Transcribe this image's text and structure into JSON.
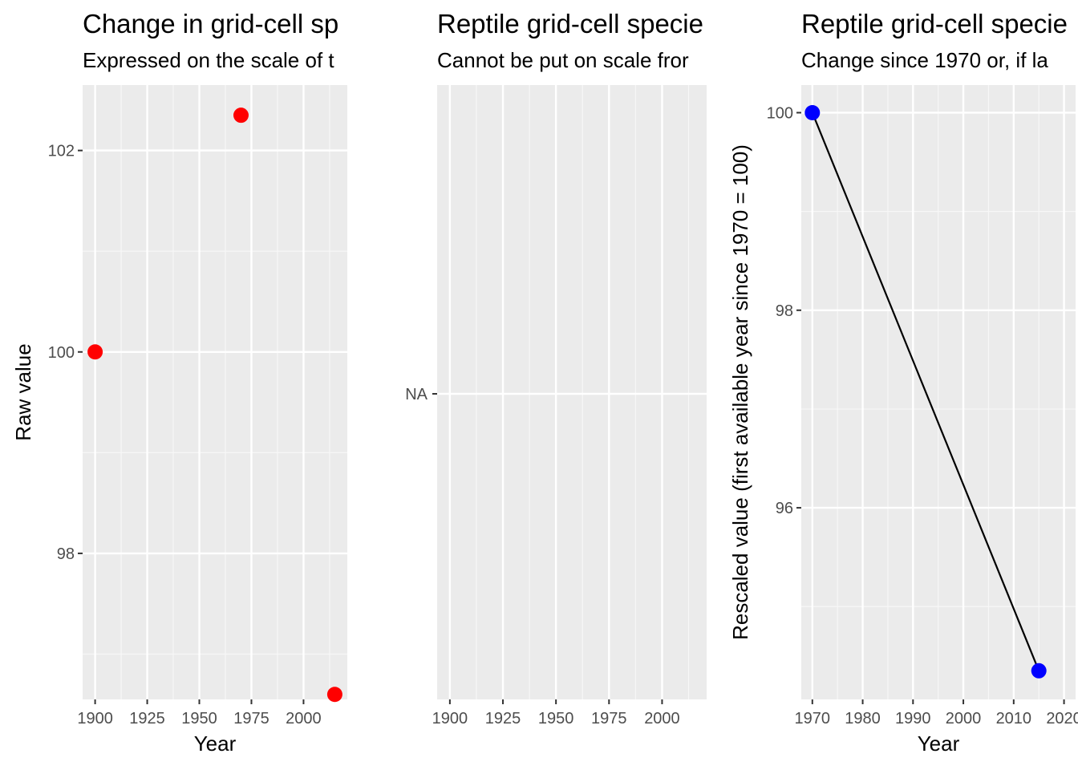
{
  "colors": {
    "panel_background": "#ebebeb",
    "grid_major": "#ffffff",
    "grid_minor": "#f7f7f7",
    "tick": "#333333",
    "tick_label": "#4d4d4d",
    "point_raw": "#ff0000",
    "point_rescaled": "#0000ff",
    "line": "#000000"
  },
  "chart_data": [
    {
      "type": "scatter",
      "title": "Change in grid-cell sp",
      "subtitle": "Expressed on the scale of t",
      "xlabel": "Year",
      "ylabel": "Raw value",
      "xlim": [
        1894,
        2021
      ],
      "ylim": [
        96.55,
        102.65
      ],
      "x_ticks": [
        1900,
        1925,
        1950,
        1975,
        2000
      ],
      "y_ticks": [
        98,
        100,
        102
      ],
      "x": [
        1900,
        1970,
        2015
      ],
      "y": [
        100,
        102.35,
        96.6
      ],
      "point_color": "#ff0000",
      "line": false,
      "grid": true,
      "legend": "none"
    },
    {
      "type": "scatter",
      "title": "Reptile grid-cell specie",
      "subtitle": "Cannot be put on scale fror",
      "xlabel": "",
      "ylabel": "",
      "xlim": [
        1894,
        2021
      ],
      "x_ticks": [
        1900,
        1925,
        1950,
        1975,
        2000
      ],
      "y_ticks_text": [
        "NA"
      ],
      "x": [],
      "y": [],
      "grid": true,
      "legend": "none"
    },
    {
      "type": "line",
      "title": "Reptile grid-cell specie",
      "subtitle": "Change since 1970 or, if la",
      "xlabel": "Year",
      "ylabel": "Rescaled value (first available year since 1970 = 100)",
      "xlim": [
        1967.8,
        2022.3
      ],
      "ylim": [
        94.06,
        100.28
      ],
      "x_ticks": [
        1970,
        1980,
        1990,
        2000,
        2010,
        2020
      ],
      "y_ticks": [
        96,
        98,
        100
      ],
      "x": [
        1970,
        2015
      ],
      "y": [
        100,
        94.35
      ],
      "point_color": "#0000ff",
      "line": true,
      "grid": true,
      "legend": "none"
    }
  ]
}
